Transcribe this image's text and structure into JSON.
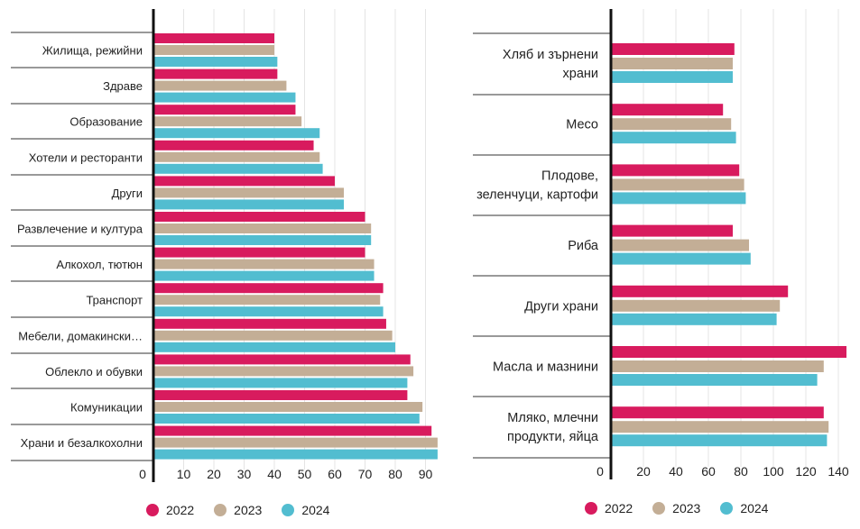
{
  "colors": {
    "2022": "#d81b5e",
    "2023": "#c3ae96",
    "2024": "#52bdd0"
  },
  "chart_data": [
    {
      "type": "bar",
      "orientation": "horizontal",
      "categories": [
        "Жилища, режийни",
        "Здраве",
        "Образование",
        "Хотели и ресторанти",
        "Други",
        "Развлечение и култура",
        "Алкохол, тютюн",
        "Транспорт",
        "Мебели, домакински…",
        "Облекло и обувки",
        "Комуникации",
        "Храни и безалкохолни"
      ],
      "series": [
        {
          "name": "2022",
          "values": [
            40,
            41,
            47,
            53,
            60,
            70,
            70,
            76,
            77,
            85,
            84,
            92
          ]
        },
        {
          "name": "2023",
          "values": [
            40,
            44,
            49,
            55,
            63,
            72,
            73,
            75,
            79,
            86,
            89,
            94
          ]
        },
        {
          "name": "2024",
          "values": [
            41,
            47,
            55,
            56,
            63,
            72,
            73,
            76,
            80,
            84,
            88,
            94
          ]
        }
      ],
      "xlim": [
        0,
        95
      ],
      "xticks": [
        0,
        10,
        20,
        30,
        40,
        50,
        60,
        70,
        80,
        90
      ],
      "grid": "vertical",
      "legend": "bottom"
    },
    {
      "type": "bar",
      "orientation": "horizontal",
      "categories": [
        "Хляб и зърнени храни",
        "Месо",
        "Плодове, зеленчуци, картофи",
        "Риба",
        "Други храни",
        "Масла и мазнини",
        "Мляко, млечни продукти, яйца"
      ],
      "display_labels": [
        [
          "Хляб и зърнени",
          "храни"
        ],
        [
          "Месо"
        ],
        [
          "Плодове,",
          "зеленчуци, картофи"
        ],
        [
          "Риба"
        ],
        [
          "Други храни"
        ],
        [
          "Масла и мазнини"
        ],
        [
          "Мляко, млечни",
          "продукти, яйца"
        ]
      ],
      "series": [
        {
          "name": "2022",
          "values": [
            76,
            69,
            79,
            75,
            109,
            145,
            131
          ]
        },
        {
          "name": "2023",
          "values": [
            75,
            74,
            82,
            85,
            104,
            131,
            134
          ]
        },
        {
          "name": "2024",
          "values": [
            75,
            77,
            83,
            86,
            102,
            127,
            133
          ]
        }
      ],
      "xlim": [
        0,
        145
      ],
      "xticks": [
        0,
        20,
        40,
        60,
        80,
        100,
        120,
        140
      ],
      "grid": "vertical",
      "legend": "bottom"
    }
  ],
  "legends": [
    {
      "items": [
        "2022",
        "2023",
        "2024"
      ]
    },
    {
      "items": [
        "2022",
        "2023",
        "2024"
      ]
    }
  ]
}
